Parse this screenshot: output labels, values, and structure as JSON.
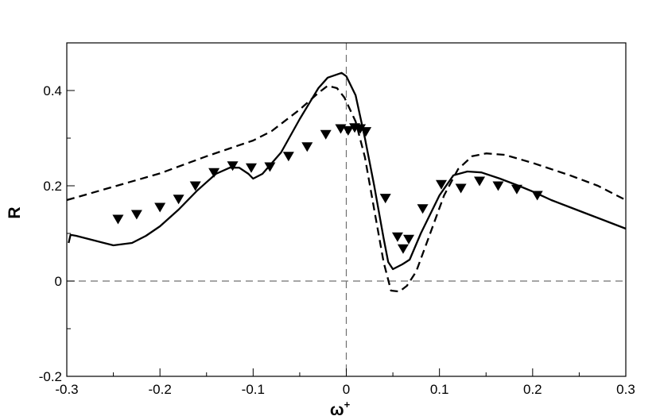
{
  "chart_data": {
    "type": "line",
    "title": "",
    "xlabel": "ω",
    "xlabel_superscript": "+",
    "ylabel": "R",
    "xlim": [
      -0.3,
      0.3
    ],
    "ylim": [
      -0.2,
      0.5
    ],
    "x_ticks": [
      -0.3,
      -0.2,
      -0.1,
      0,
      0.1,
      0.2,
      0.3
    ],
    "x_tick_labels": [
      "-0.3",
      "-0.2",
      "-0.1",
      "0",
      "0.1",
      "0.2",
      "0.3"
    ],
    "y_ticks": [
      -0.2,
      0,
      0.2,
      0.4
    ],
    "y_tick_labels": [
      "-0.2",
      "0",
      "0.2",
      "0.4"
    ],
    "grid": false,
    "reference_lines": {
      "x": 0,
      "y": 0,
      "style": "dashed",
      "color": "#707070"
    },
    "series": [
      {
        "style": "solid",
        "color": "#000000",
        "points": [
          [
            -0.298,
            0.08
          ],
          [
            -0.296,
            0.097
          ],
          [
            -0.29,
            0.095
          ],
          [
            -0.27,
            0.085
          ],
          [
            -0.25,
            0.075
          ],
          [
            -0.23,
            0.08
          ],
          [
            -0.215,
            0.095
          ],
          [
            -0.2,
            0.115
          ],
          [
            -0.18,
            0.15
          ],
          [
            -0.16,
            0.19
          ],
          [
            -0.14,
            0.225
          ],
          [
            -0.125,
            0.238
          ],
          [
            -0.115,
            0.238
          ],
          [
            -0.105,
            0.225
          ],
          [
            -0.1,
            0.215
          ],
          [
            -0.09,
            0.225
          ],
          [
            -0.07,
            0.27
          ],
          [
            -0.05,
            0.34
          ],
          [
            -0.03,
            0.405
          ],
          [
            -0.02,
            0.427
          ],
          [
            -0.005,
            0.437
          ],
          [
            0.0,
            0.43
          ],
          [
            0.01,
            0.39
          ],
          [
            0.02,
            0.3
          ],
          [
            0.03,
            0.2
          ],
          [
            0.04,
            0.09
          ],
          [
            0.045,
            0.04
          ],
          [
            0.05,
            0.025
          ],
          [
            0.06,
            0.035
          ],
          [
            0.068,
            0.045
          ],
          [
            0.08,
            0.1
          ],
          [
            0.1,
            0.18
          ],
          [
            0.115,
            0.222
          ],
          [
            0.13,
            0.23
          ],
          [
            0.145,
            0.228
          ],
          [
            0.165,
            0.215
          ],
          [
            0.185,
            0.2
          ],
          [
            0.2,
            0.188
          ],
          [
            0.22,
            0.17
          ],
          [
            0.24,
            0.155
          ],
          [
            0.26,
            0.14
          ],
          [
            0.28,
            0.125
          ],
          [
            0.3,
            0.11
          ]
        ]
      },
      {
        "style": "dashed",
        "color": "#000000",
        "points": [
          [
            -0.3,
            0.17
          ],
          [
            -0.25,
            0.198
          ],
          [
            -0.2,
            0.226
          ],
          [
            -0.15,
            0.262
          ],
          [
            -0.1,
            0.295
          ],
          [
            -0.08,
            0.315
          ],
          [
            -0.05,
            0.36
          ],
          [
            -0.03,
            0.395
          ],
          [
            -0.02,
            0.41
          ],
          [
            -0.01,
            0.405
          ],
          [
            -0.002,
            0.385
          ],
          [
            0.01,
            0.335
          ],
          [
            0.02,
            0.26
          ],
          [
            0.03,
            0.15
          ],
          [
            0.04,
            0.04
          ],
          [
            0.048,
            -0.02
          ],
          [
            0.057,
            -0.022
          ],
          [
            0.065,
            -0.01
          ],
          [
            0.075,
            0.02
          ],
          [
            0.09,
            0.1
          ],
          [
            0.105,
            0.18
          ],
          [
            0.12,
            0.235
          ],
          [
            0.135,
            0.262
          ],
          [
            0.15,
            0.268
          ],
          [
            0.17,
            0.265
          ],
          [
            0.2,
            0.248
          ],
          [
            0.24,
            0.222
          ],
          [
            0.27,
            0.2
          ],
          [
            0.3,
            0.17
          ]
        ]
      },
      {
        "style": "markers",
        "marker": "triangle-down",
        "color": "#000000",
        "points": [
          [
            -0.245,
            0.13
          ],
          [
            -0.225,
            0.14
          ],
          [
            -0.2,
            0.155
          ],
          [
            -0.18,
            0.172
          ],
          [
            -0.162,
            0.2
          ],
          [
            -0.142,
            0.228
          ],
          [
            -0.122,
            0.242
          ],
          [
            -0.102,
            0.238
          ],
          [
            -0.082,
            0.24
          ],
          [
            -0.062,
            0.262
          ],
          [
            -0.042,
            0.282
          ],
          [
            -0.022,
            0.308
          ],
          [
            -0.006,
            0.32
          ],
          [
            0.002,
            0.316
          ],
          [
            0.009,
            0.322
          ],
          [
            0.015,
            0.32
          ],
          [
            0.021,
            0.314
          ],
          [
            0.042,
            0.174
          ],
          [
            0.055,
            0.093
          ],
          [
            0.061,
            0.068
          ],
          [
            0.067,
            0.088
          ],
          [
            0.082,
            0.152
          ],
          [
            0.102,
            0.203
          ],
          [
            0.123,
            0.195
          ],
          [
            0.143,
            0.21
          ],
          [
            0.163,
            0.2
          ],
          [
            0.183,
            0.193
          ],
          [
            0.205,
            0.18
          ]
        ]
      }
    ]
  }
}
